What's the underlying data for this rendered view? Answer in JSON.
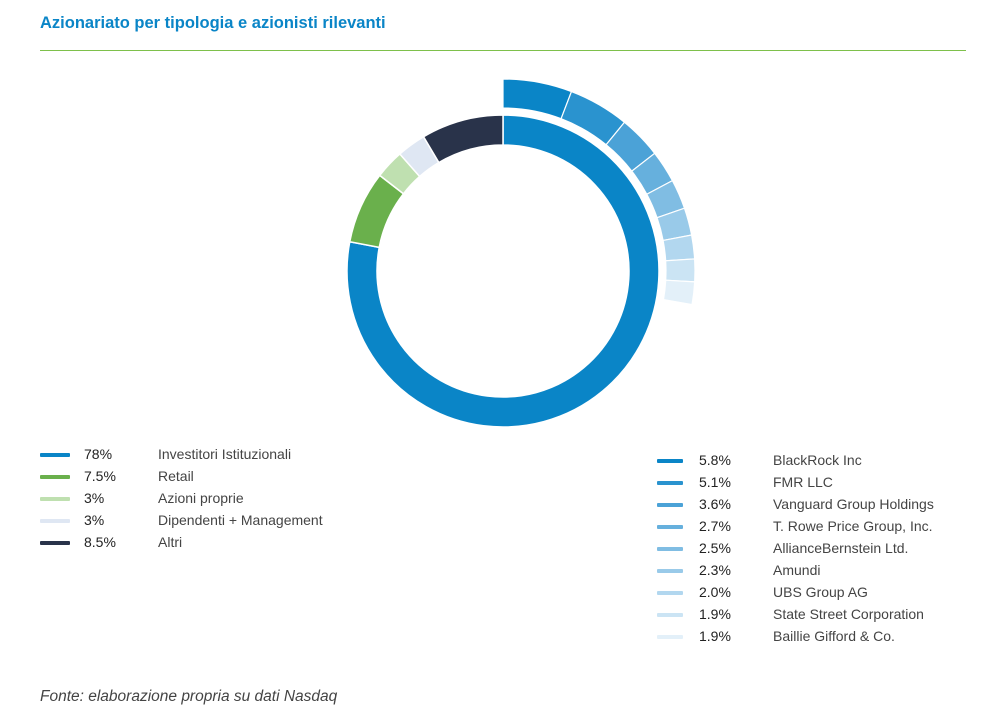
{
  "title": "Azionariato per tipologia e azionisti rilevanti",
  "source": "Fonte: elaborazione propria su dati Nasdaq",
  "chart_data": {
    "type": "pie",
    "inner_ring": {
      "slices": [
        {
          "pct": "78%",
          "value": 78,
          "label": "Investitori Istituzionali",
          "color": "#0a85c7"
        },
        {
          "pct": "7.5%",
          "value": 7.5,
          "label": "Retail",
          "color": "#6ab04c"
        },
        {
          "pct": "3%",
          "value": 3,
          "label": "Azioni proprie",
          "color": "#bfe0b0"
        },
        {
          "pct": "3%",
          "value": 3,
          "label": "Dipendenti + Management",
          "color": "#dfe7f3"
        },
        {
          "pct": "8.5%",
          "value": 8.5,
          "label": "Altri",
          "color": "#29334a"
        }
      ]
    },
    "outer_ring": {
      "slices": [
        {
          "pct": "5.8%",
          "value": 5.8,
          "label": "BlackRock Inc",
          "color": "#0a85c7"
        },
        {
          "pct": "5.1%",
          "value": 5.1,
          "label": "FMR LLC",
          "color": "#2a93cf"
        },
        {
          "pct": "3.6%",
          "value": 3.6,
          "label": "Vanguard Group Holdings",
          "color": "#4ba2d7"
        },
        {
          "pct": "2.7%",
          "value": 2.7,
          "label": "T. Rowe Price Group, Inc.",
          "color": "#66b0dd"
        },
        {
          "pct": "2.5%",
          "value": 2.5,
          "label": "AllianceBernstein Ltd.",
          "color": "#80bde3"
        },
        {
          "pct": "2.3%",
          "value": 2.3,
          "label": "Amundi",
          "color": "#99cae9"
        },
        {
          "pct": "2.0%",
          "value": 2.0,
          "label": "UBS Group AG",
          "color": "#b2d7ef"
        },
        {
          "pct": "1.9%",
          "value": 1.9,
          "label": "State Street Corporation",
          "color": "#cbe4f4"
        },
        {
          "pct": "1.9%",
          "value": 1.9,
          "label": "Baillie Gifford & Co.",
          "color": "#e3f0f9"
        }
      ]
    }
  }
}
